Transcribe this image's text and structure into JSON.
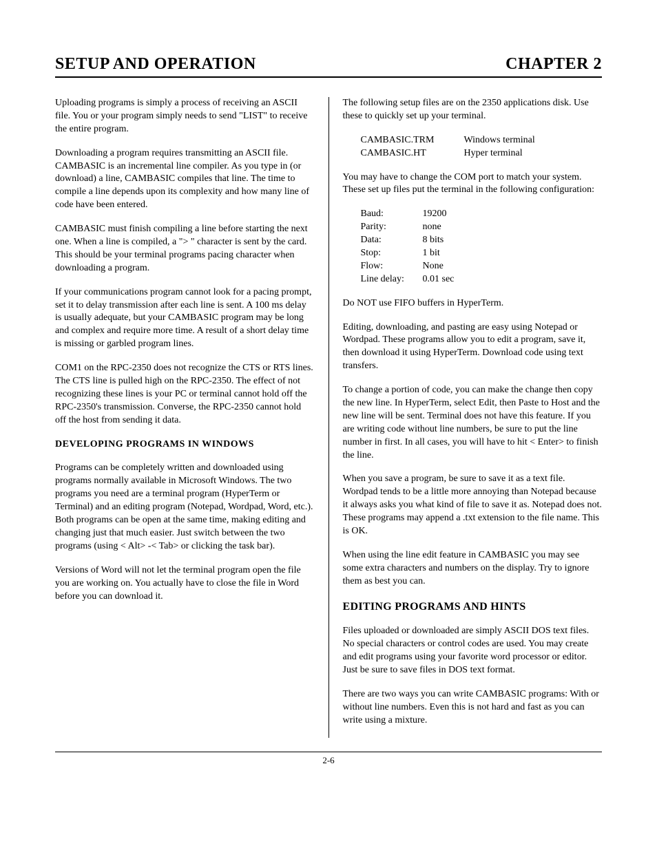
{
  "header": {
    "left": "SETUP AND OPERATION",
    "right": "CHAPTER 2"
  },
  "left": {
    "p1": "Uploading programs is simply a process of receiving an ASCII file.  You or your program simply needs to send \"LIST\" to receive the entire program.",
    "p2": "Downloading a program requires transmitting an ASCII file.  CAMBASIC is an incremental line compiler.  As you type in (or download) a line, CAMBASIC compiles that line.  The time to compile a line depends upon its complexity and how many line of code have been entered.",
    "p3": "CAMBASIC must finish compiling a line before starting the next one.  When a line is compiled, a \">  \" character is sent by the card.  This should be your terminal programs pacing character when downloading a program.",
    "p4": "If your communications program cannot look for a pacing prompt, set it to delay transmission after each line is sent.  A 100 ms delay is usually adequate, but your CAMBASIC program may be long and complex and require more time.  A result of a short delay time is missing or garbled program lines.",
    "p5": "COM1 on the RPC-2350 does not recognize the CTS or RTS lines.  The CTS line is pulled high on the RPC-2350.  The effect of not recognizing these lines is your PC or terminal cannot hold off the RPC-2350's transmission.  Converse, the RPC-2350 cannot hold off the host from sending it data.",
    "s1": "DEVELOPING PROGRAMS IN WINDOWS",
    "p6": "Programs can be completely written and downloaded using programs normally available in Microsoft Windows.  The two programs you need are a terminal program (HyperTerm or Terminal) and an editing program (Notepad, Wordpad, Word, etc.).  Both programs can be open at the same time, making editing and changing just that much easier. Just switch between the two programs (using <  Alt>  -< Tab>   or clicking the task bar).",
    "p7": "Versions of Word will not let the terminal program open the file you are working on.  You actually have to close the file in Word before you can download it."
  },
  "right": {
    "p1": "The following setup files are on the 2350 applications disk.  Use these to quickly set up your terminal.",
    "files": [
      {
        "name": "CAMBASIC.TRM",
        "desc": "Windows terminal"
      },
      {
        "name": "CAMBASIC.HT",
        "desc": "Hyper terminal"
      }
    ],
    "p2": "You may have to change the COM port to match your system.  These set up files put the terminal in the following configuration:",
    "config": [
      {
        "label": "Baud:",
        "value": "19200"
      },
      {
        "label": "Parity:",
        "value": "none"
      },
      {
        "label": "Data:",
        "value": "8 bits"
      },
      {
        "label": "Stop:",
        "value": "1 bit"
      },
      {
        "label": "Flow:",
        "value": "None"
      },
      {
        "label": "Line delay:",
        "value": "0.01 sec"
      }
    ],
    "p3": "Do NOT use FIFO buffers in HyperTerm.",
    "p4": "Editing, downloading, and pasting are easy using Notepad or Wordpad.  These programs allow you to edit a program, save it, then download it using HyperTerm.  Download code using text transfers.",
    "p5": "To change a portion of code, you can make the change then copy the new line.  In HyperTerm, select Edit, then Paste to Host and the new line will be sent.  Terminal does not have this feature.  If you are writing code without line numbers, be sure to put the line number in first.  In all cases, you will have to hit <  Enter>  to finish the line.",
    "p6": "When you save a program, be sure to save it as a text file.  Wordpad tends to be a little more annoying than Notepad because it always asks you what kind of file to save it as.  Notepad does not.  These programs may append a .txt extension to the file name.  This is OK.",
    "p7": "When using the line edit feature in CAMBASIC you may see some extra characters and numbers on the display.  Try to ignore them as best you can.",
    "s1": "EDITING PROGRAMS AND HINTS",
    "p8": "Files uploaded or downloaded are simply ASCII DOS text files.  No special characters or control codes are used.  You may create and edit programs using your favorite word processor or editor.  Just be sure to save files in DOS text format.",
    "p9": "There are two ways you can write CAMBASIC programs: With or without line numbers.  Even this is not hard and fast as you can write using a mixture."
  },
  "footer": "2-6"
}
